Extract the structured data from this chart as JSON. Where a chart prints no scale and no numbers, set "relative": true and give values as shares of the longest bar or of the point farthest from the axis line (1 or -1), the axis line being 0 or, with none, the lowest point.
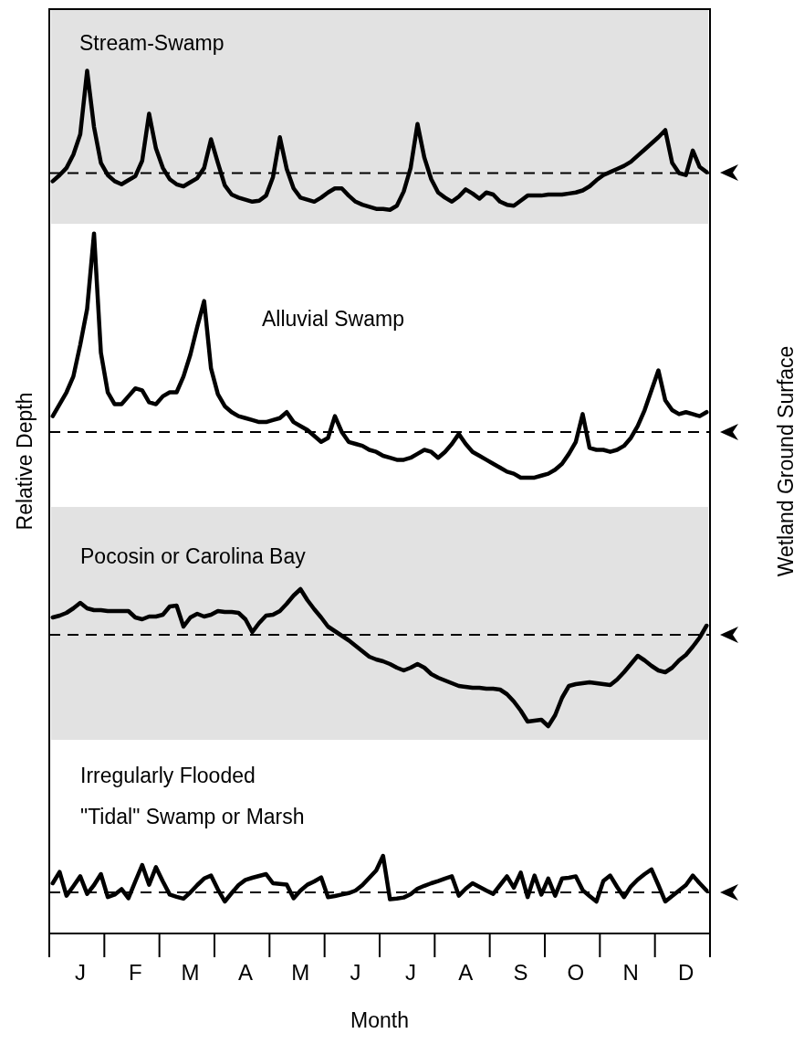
{
  "chart_data": [
    {
      "type": "line",
      "title": "Stream-Swamp",
      "relative": true,
      "marker": "none",
      "series": [
        {
          "color": "#000000",
          "values": [
            -0.08,
            -0.02,
            0.05,
            0.18,
            0.38,
            1,
            0.45,
            0.1,
            -0.02,
            -0.08,
            -0.11,
            -0.07,
            -0.03,
            0.12,
            0.58,
            0.24,
            0.05,
            -0.06,
            -0.11,
            -0.13,
            -0.09,
            -0.05,
            0.05,
            0.33,
            0.1,
            -0.12,
            -0.21,
            -0.24,
            -0.26,
            -0.28,
            -0.27,
            -0.22,
            -0.04,
            0.35,
            0.04,
            -0.15,
            -0.24,
            -0.26,
            -0.28,
            -0.24,
            -0.19,
            -0.15,
            -0.15,
            -0.22,
            -0.28,
            -0.31,
            -0.33,
            -0.35,
            -0.35,
            -0.36,
            -0.32,
            -0.18,
            0.05,
            0.48,
            0.15,
            -0.06,
            -0.19,
            -0.24,
            -0.28,
            -0.23,
            -0.16,
            -0.2,
            -0.25,
            -0.19,
            -0.21,
            -0.28,
            -0.31,
            -0.32,
            -0.27,
            -0.22,
            -0.22,
            -0.22,
            -0.21,
            -0.21,
            -0.21,
            -0.2,
            -0.19,
            -0.17,
            -0.13,
            -0.07,
            -0.02,
            0.01,
            0.04,
            0.07,
            0.11,
            0.17,
            0.23,
            0.29,
            0.35,
            0.42,
            0.1,
            0,
            -0.02,
            0.22,
            0.06,
            0.01
          ]
        }
      ],
      "ref_lines": [
        {
          "axis": "y",
          "value": 0,
          "line_style": "dashed",
          "color": "#000000"
        }
      ]
    },
    {
      "type": "line",
      "title": "Alluvial Swamp",
      "ylabel": "Relative Depth",
      "y2label": "Wetland Ground Surface",
      "relative": true,
      "marker": "none",
      "series": [
        {
          "color": "#000000",
          "values": [
            0.08,
            0.14,
            0.2,
            0.28,
            0.44,
            0.62,
            1,
            0.4,
            0.2,
            0.14,
            0.14,
            0.18,
            0.22,
            0.21,
            0.15,
            0.14,
            0.18,
            0.2,
            0.2,
            0.28,
            0.39,
            0.53,
            0.66,
            0.32,
            0.19,
            0.13,
            0.1,
            0.08,
            0.07,
            0.06,
            0.05,
            0.05,
            0.06,
            0.07,
            0.1,
            0.05,
            0.03,
            0.01,
            -0.02,
            -0.05,
            -0.03,
            0.08,
            0,
            -0.05,
            -0.06,
            -0.07,
            -0.09,
            -0.1,
            -0.12,
            -0.13,
            -0.14,
            -0.14,
            -0.13,
            -0.11,
            -0.09,
            -0.1,
            -0.13,
            -0.1,
            -0.06,
            -0.01,
            -0.06,
            -0.1,
            -0.12,
            -0.14,
            -0.16,
            -0.18,
            -0.2,
            -0.21,
            -0.23,
            -0.23,
            -0.23,
            -0.22,
            -0.21,
            -0.19,
            -0.16,
            -0.11,
            -0.05,
            0.09,
            -0.08,
            -0.09,
            -0.09,
            -0.1,
            -0.09,
            -0.07,
            -0.03,
            0.03,
            0.11,
            0.21,
            0.31,
            0.16,
            0.11,
            0.09,
            0.1,
            0.09,
            0.08,
            0.1
          ]
        }
      ],
      "ref_lines": [
        {
          "axis": "y",
          "value": 0,
          "line_style": "dashed",
          "color": "#000000"
        }
      ]
    },
    {
      "type": "line",
      "title": "Pocosin or Carolina Bay",
      "relative": true,
      "marker": "none",
      "series": [
        {
          "color": "#000000",
          "values": [
            0.19,
            0.21,
            0.24,
            0.29,
            0.35,
            0.29,
            0.27,
            0.27,
            0.26,
            0.26,
            0.26,
            0.26,
            0.19,
            0.17,
            0.2,
            0.2,
            0.22,
            0.31,
            0.32,
            0.09,
            0.19,
            0.23,
            0.2,
            0.22,
            0.26,
            0.25,
            0.25,
            0.24,
            0.17,
            0.03,
            0.13,
            0.21,
            0.22,
            0.26,
            0.34,
            0.43,
            0.5,
            0.38,
            0.28,
            0.19,
            0.09,
            0.04,
            -0.01,
            -0.06,
            -0.12,
            -0.18,
            -0.24,
            -0.27,
            -0.29,
            -0.32,
            -0.36,
            -0.39,
            -0.36,
            -0.32,
            -0.36,
            -0.43,
            -0.47,
            -0.5,
            -0.53,
            -0.56,
            -0.57,
            -0.58,
            -0.58,
            -0.59,
            -0.59,
            -0.6,
            -0.65,
            -0.73,
            -0.83,
            -0.95,
            -0.94,
            -0.93,
            -1,
            -0.88,
            -0.69,
            -0.56,
            -0.54,
            -0.53,
            -0.52,
            -0.53,
            -0.54,
            -0.55,
            -0.49,
            -0.41,
            -0.32,
            -0.23,
            -0.28,
            -0.34,
            -0.39,
            -0.41,
            -0.36,
            -0.28,
            -0.22,
            -0.13,
            -0.03,
            0.1
          ]
        }
      ],
      "ref_lines": [
        {
          "axis": "y",
          "value": 0,
          "line_style": "dashed",
          "color": "#000000"
        }
      ]
    },
    {
      "type": "line",
      "title": "Irregularly Flooded\n\"Tidal\" Swamp or Marsh",
      "xlabel": "Month",
      "relative": true,
      "marker": "none",
      "tick_labels": "x",
      "categories": [
        null,
        null,
        null,
        null,
        "J",
        null,
        null,
        null,
        null,
        null,
        null,
        null,
        "F",
        null,
        null,
        null,
        null,
        null,
        null,
        null,
        "M",
        null,
        null,
        null,
        null,
        null,
        null,
        null,
        "A",
        null,
        null,
        null,
        null,
        null,
        null,
        null,
        "M",
        null,
        null,
        null,
        null,
        null,
        null,
        null,
        "J",
        null,
        null,
        null,
        null,
        null,
        null,
        null,
        "J",
        null,
        null,
        null,
        null,
        null,
        null,
        null,
        "A",
        null,
        null,
        null,
        null,
        null,
        null,
        null,
        "S",
        null,
        null,
        null,
        null,
        null,
        null,
        null,
        "O",
        null,
        null,
        null,
        null,
        null,
        null,
        null,
        "N",
        null,
        null,
        null,
        null,
        null,
        null,
        null,
        "D",
        null,
        null,
        null
      ],
      "series": [
        {
          "color": "#000000",
          "values": [
            0.25,
            0.56,
            -0.09,
            0.17,
            0.44,
            -0.04,
            0.2,
            0.5,
            -0.13,
            -0.06,
            0.09,
            -0.16,
            0.3,
            0.75,
            0.21,
            0.69,
            0.3,
            -0.06,
            -0.12,
            -0.17,
            0,
            0.2,
            0.38,
            0.46,
            0.08,
            -0.25,
            -0.02,
            0.2,
            0.34,
            0.4,
            0.45,
            0.5,
            0.25,
            0.23,
            0.21,
            -0.16,
            0.05,
            0.21,
            0.3,
            0.41,
            -0.13,
            -0.1,
            -0.06,
            -0.02,
            0.05,
            0.2,
            0.4,
            0.6,
            1,
            -0.19,
            -0.17,
            -0.14,
            -0.05,
            0.1,
            0.18,
            0.25,
            0.31,
            0.38,
            0.44,
            -0.09,
            0.1,
            0.25,
            0.15,
            0.05,
            -0.04,
            0.2,
            0.44,
            0.13,
            0.54,
            -0.13,
            0.46,
            -0.06,
            0.38,
            -0.09,
            0.38,
            0.4,
            0.44,
            0.06,
            -0.1,
            -0.25,
            0.31,
            0.46,
            0.15,
            -0.13,
            0.16,
            0.35,
            0.5,
            0.63,
            0.2,
            -0.25,
            -0.1,
            0.05,
            0.2,
            0.46,
            0.25,
            0.05
          ]
        }
      ],
      "ref_lines": [
        {
          "axis": "y",
          "value": 0,
          "line_style": "dashed",
          "color": "#000000"
        }
      ]
    }
  ]
}
